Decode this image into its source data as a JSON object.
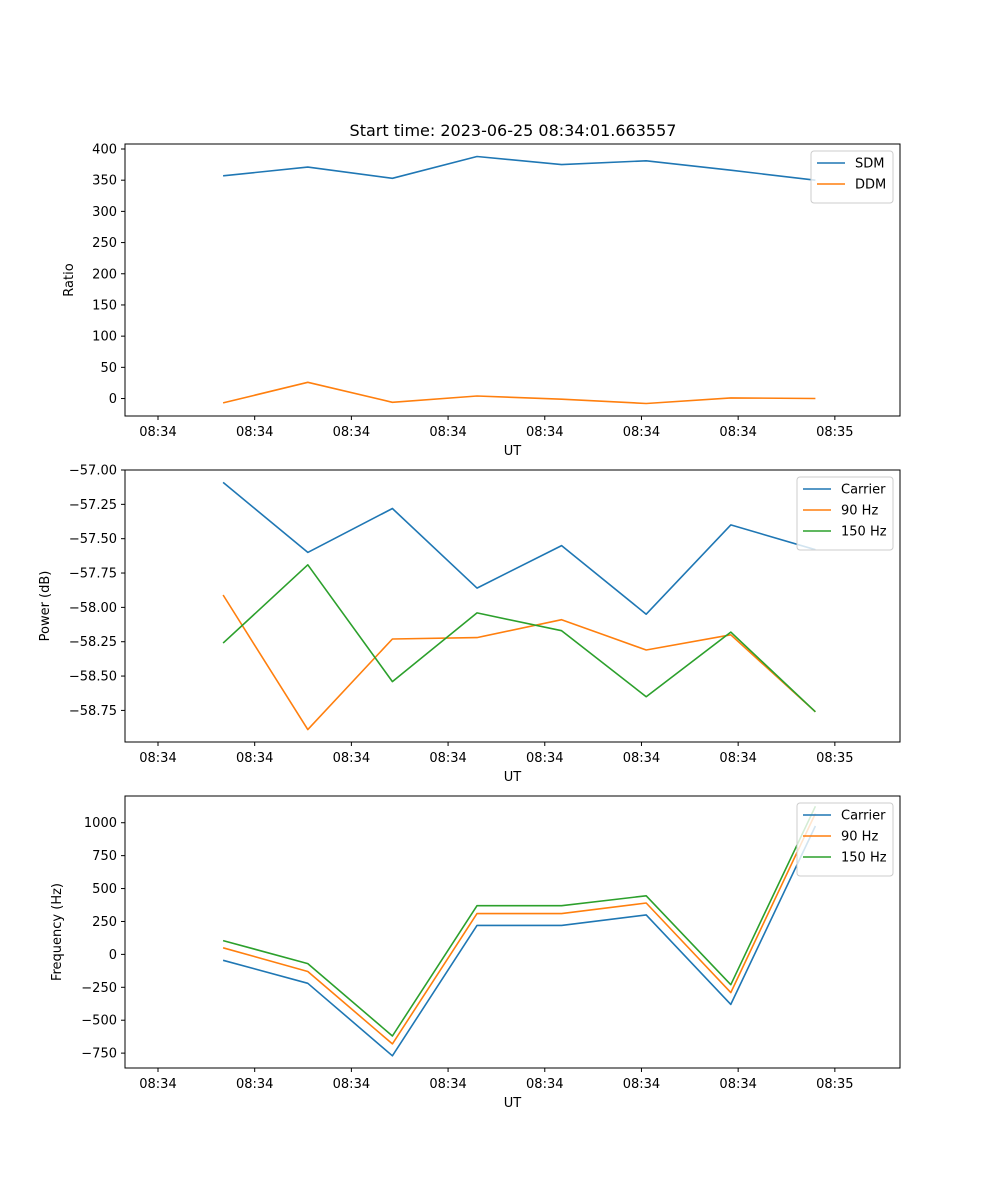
{
  "suptitle": "Start time: 2023-06-25 08:34:01.663557",
  "colors": {
    "c1": "#1f77b4",
    "c2": "#ff7f0e",
    "c3": "#2ca02c"
  },
  "chart_data": [
    {
      "type": "line",
      "title": "Start time: 2023-06-25 08:34:01.663557",
      "xlabel": "UT",
      "ylabel": "Ratio",
      "x_tick_labels": [
        "08:34",
        "08:34",
        "08:34",
        "08:34",
        "08:34",
        "08:34",
        "08:34"
      ],
      "x_tick_labels_last": "08:35",
      "xlim": [
        -0.39,
        8.77
      ],
      "x": [
        0.77,
        1.77,
        2.77,
        3.77,
        4.77,
        5.77,
        6.77,
        7.77
      ],
      "y_ticks": [
        0,
        50,
        100,
        150,
        200,
        250,
        300,
        350,
        400
      ],
      "ylim": [
        -28,
        408
      ],
      "legend": "upper right",
      "series": [
        {
          "name": "SDM",
          "color": "#1f77b4",
          "values": [
            357,
            371,
            353,
            388,
            375,
            381,
            366,
            350
          ]
        },
        {
          "name": "DDM",
          "color": "#ff7f0e",
          "values": [
            -7,
            26,
            -6,
            4,
            -1,
            -8,
            1,
            0
          ]
        }
      ]
    },
    {
      "type": "line",
      "title": "",
      "xlabel": "UT",
      "ylabel": "Power (dB)",
      "x_tick_labels": [
        "08:34",
        "08:34",
        "08:34",
        "08:34",
        "08:34",
        "08:34",
        "08:34"
      ],
      "x_tick_labels_last": "08:35",
      "xlim": [
        -0.39,
        8.77
      ],
      "x": [
        0.77,
        1.77,
        2.77,
        3.77,
        4.77,
        5.77,
        6.77,
        7.77
      ],
      "y_ticks": [
        -57.0,
        -57.25,
        -57.5,
        -57.75,
        -58.0,
        -58.25,
        -58.5,
        -58.75
      ],
      "y_tick_labels": [
        "−57.00",
        "−57.25",
        "−57.50",
        "−57.75",
        "−58.00",
        "−58.25",
        "−58.50",
        "−58.75"
      ],
      "ylim": [
        -58.98,
        -57.0
      ],
      "legend": "upper right",
      "series": [
        {
          "name": "Carrier",
          "color": "#1f77b4",
          "values": [
            -57.09,
            -57.6,
            -57.28,
            -57.86,
            -57.55,
            -58.05,
            -57.4,
            -57.58
          ]
        },
        {
          "name": "90 Hz",
          "color": "#ff7f0e",
          "values": [
            -57.91,
            -58.89,
            -58.23,
            -58.22,
            -58.09,
            -58.31,
            -58.2,
            -58.76
          ]
        },
        {
          "name": "150 Hz",
          "color": "#2ca02c",
          "values": [
            -58.26,
            -57.69,
            -58.54,
            -58.04,
            -58.17,
            -58.65,
            -58.18,
            -58.76
          ]
        }
      ]
    },
    {
      "type": "line",
      "title": "",
      "xlabel": "UT",
      "ylabel": "Frequency (Hz)",
      "x_tick_labels": [
        "08:34",
        "08:34",
        "08:34",
        "08:34",
        "08:34",
        "08:34",
        "08:34"
      ],
      "x_tick_labels_last": "08:35",
      "xlim": [
        -0.39,
        8.77
      ],
      "x": [
        0.77,
        1.77,
        2.77,
        3.77,
        4.77,
        5.77,
        6.77,
        7.77
      ],
      "y_ticks": [
        -750,
        -500,
        -250,
        0,
        250,
        500,
        750,
        1000
      ],
      "y_tick_labels": [
        "−750",
        "−500",
        "−250",
        "0",
        "250",
        "500",
        "750",
        "1000"
      ],
      "ylim": [
        -863,
        1203
      ],
      "legend": "upper right",
      "series": [
        {
          "name": "Carrier",
          "color": "#1f77b4",
          "values": [
            -45,
            -220,
            -770,
            220,
            220,
            300,
            -380,
            975
          ]
        },
        {
          "name": "90 Hz",
          "color": "#ff7f0e",
          "values": [
            50,
            -130,
            -680,
            310,
            310,
            390,
            -290,
            1070
          ]
        },
        {
          "name": "150 Hz",
          "color": "#2ca02c",
          "values": [
            105,
            -70,
            -620,
            370,
            370,
            445,
            -230,
            1125
          ]
        }
      ]
    }
  ]
}
